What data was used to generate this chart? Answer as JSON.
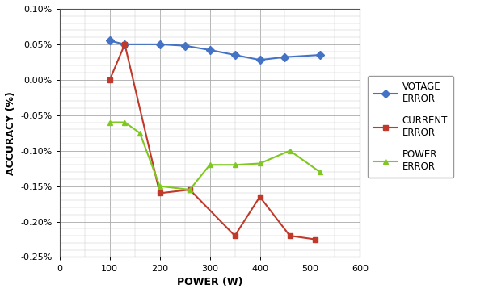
{
  "voltage_error": {
    "x": [
      100,
      130,
      200,
      250,
      300,
      350,
      400,
      450,
      520
    ],
    "y": [
      0.00055,
      0.0005,
      0.0005,
      0.00048,
      0.00042,
      0.00035,
      0.00028,
      0.00032,
      0.00035
    ],
    "color": "#4472C4",
    "label": "VOTAGE\nERROR",
    "marker": "D"
  },
  "current_error": {
    "x": [
      100,
      130,
      200,
      260,
      350,
      400,
      460,
      510
    ],
    "y": [
      0.0,
      0.0005,
      -0.0016,
      -0.00155,
      -0.0022,
      -0.00165,
      -0.0022,
      -0.00225
    ],
    "color": "#C0392B",
    "label": "CURRENT\nERROR",
    "marker": "s"
  },
  "power_error": {
    "x": [
      100,
      130,
      160,
      200,
      260,
      300,
      350,
      400,
      460,
      520
    ],
    "y": [
      -0.0006,
      -0.0006,
      -0.00075,
      -0.0015,
      -0.00155,
      -0.0012,
      -0.0012,
      -0.00118,
      -0.001,
      -0.0013
    ],
    "color": "#7EC820",
    "label": "POWER\nERROR",
    "marker": "^"
  },
  "xlabel": "POWER (W)",
  "ylabel": "ACCURACY (%)",
  "xlim": [
    0,
    600
  ],
  "ylim": [
    -0.0025,
    0.001
  ],
  "ytick_vals": [
    -0.0025,
    -0.002,
    -0.0015,
    -0.001,
    -0.0005,
    0.0,
    0.0005,
    0.001
  ],
  "ytick_labels": [
    "-0.25%",
    "-0.20%",
    "-0.15%",
    "-0.10%",
    "-0.05%",
    "0.00%",
    "0.05%",
    "0.10%"
  ],
  "xticks": [
    0,
    100,
    200,
    300,
    400,
    500,
    600
  ],
  "bg_color": "#FFFFFF",
  "grid_major_color": "#AAAAAA",
  "grid_minor_color": "#CCCCCC"
}
